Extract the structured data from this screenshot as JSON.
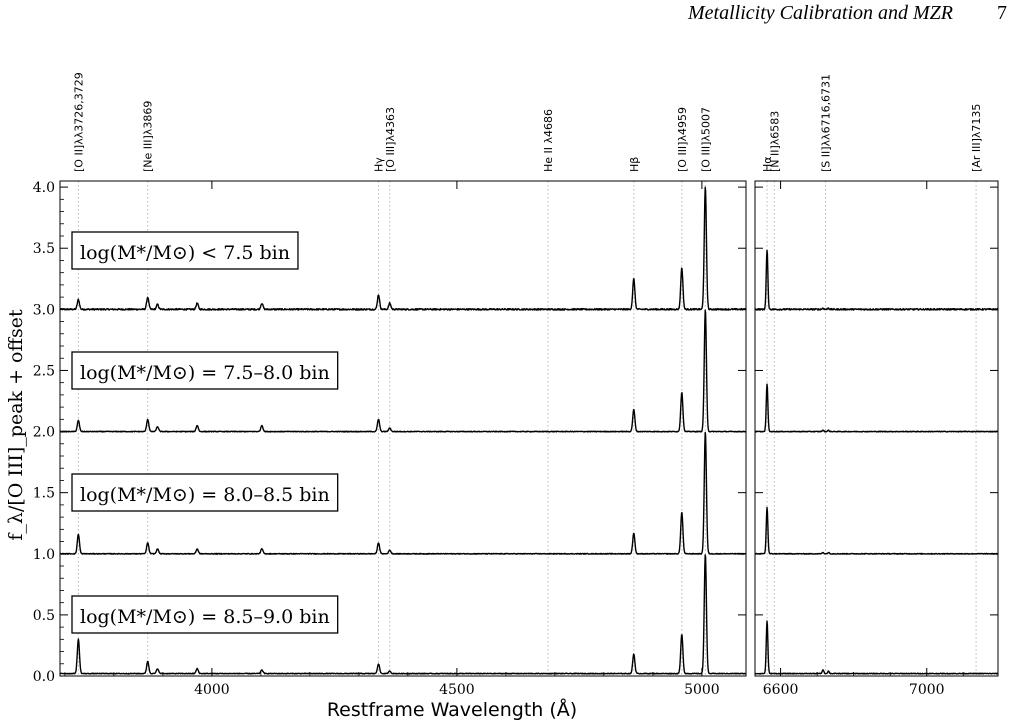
{
  "header": {
    "running_title": "Metallicity Calibration and MZR",
    "page_number": "7"
  },
  "chart_data": {
    "type": "line",
    "xlabel": "Restframe Wavelength (Å)",
    "ylabel": "f_λ/[O III]_peak + offset",
    "ylim": [
      0,
      4.05
    ],
    "yticks": [
      0.0,
      0.5,
      1.0,
      1.5,
      2.0,
      2.5,
      3.0,
      3.5,
      4.0
    ],
    "ytick_labels": [
      "0.0",
      "0.5",
      "1.0",
      "1.5",
      "2.0",
      "2.5",
      "3.0",
      "3.5",
      "4.0"
    ],
    "panels": [
      {
        "name": "blue",
        "xlim": [
          3690,
          5090
        ],
        "xticks": [
          4000,
          4500,
          5000
        ],
        "xtick_labels": [
          "4000",
          "4500",
          "5000"
        ]
      },
      {
        "name": "red",
        "xlim": [
          6530,
          7195
        ],
        "xticks": [
          6600,
          7000
        ],
        "xtick_labels": [
          "6600",
          "7000"
        ]
      }
    ],
    "line_markers": [
      {
        "label": "[O II]λλ3726,3729",
        "wavelength": 3727.5,
        "panel": 0
      },
      {
        "label": "[Ne III]λ3869",
        "wavelength": 3869,
        "panel": 0
      },
      {
        "label": "Hγ",
        "wavelength": 4340,
        "panel": 0
      },
      {
        "label": "[O III]λ4363",
        "wavelength": 4363,
        "panel": 0
      },
      {
        "label": "He II λ4686",
        "wavelength": 4686,
        "panel": 0
      },
      {
        "label": "Hβ",
        "wavelength": 4861,
        "panel": 0
      },
      {
        "label": "[O III]λ4959",
        "wavelength": 4959,
        "panel": 0
      },
      {
        "label": "[O III]λ5007",
        "wavelength": 5007,
        "panel": 0
      },
      {
        "label": "Hα",
        "wavelength": 6563,
        "panel": 1
      },
      {
        "label": "[N II]λ6583",
        "wavelength": 6583,
        "panel": 1
      },
      {
        "label": "[S II]λλ6716,6731",
        "wavelength": 6723,
        "panel": 1
      },
      {
        "label": "[Ar III]λ7135",
        "wavelength": 7135,
        "panel": 1
      }
    ],
    "line_width_A": 2.2,
    "series": [
      {
        "name": "log(M*/M⊙) < 7.5 bin",
        "offset": 3.0,
        "noise": 0.006,
        "lines": [
          {
            "w": 3727.5,
            "amp": 0.08
          },
          {
            "w": 3869,
            "amp": 0.1
          },
          {
            "w": 3889,
            "amp": 0.04
          },
          {
            "w": 3970,
            "amp": 0.05
          },
          {
            "w": 4102,
            "amp": 0.05
          },
          {
            "w": 4340,
            "amp": 0.12
          },
          {
            "w": 4363,
            "amp": 0.05
          },
          {
            "w": 4861,
            "amp": 0.25
          },
          {
            "w": 4959,
            "amp": 0.34
          },
          {
            "w": 5007,
            "amp": 1.0
          },
          {
            "w": 6563,
            "amp": 0.49
          },
          {
            "w": 6716,
            "amp": 0.01
          },
          {
            "w": 6731,
            "amp": 0.01
          }
        ]
      },
      {
        "name": "log(M*/M⊙) = 7.5–8.0 bin",
        "offset": 2.0,
        "noise": 0.003,
        "lines": [
          {
            "w": 3727.5,
            "amp": 0.09
          },
          {
            "w": 3869,
            "amp": 0.1
          },
          {
            "w": 3889,
            "amp": 0.04
          },
          {
            "w": 3970,
            "amp": 0.05
          },
          {
            "w": 4102,
            "amp": 0.05
          },
          {
            "w": 4340,
            "amp": 0.1
          },
          {
            "w": 4363,
            "amp": 0.03
          },
          {
            "w": 4861,
            "amp": 0.18
          },
          {
            "w": 4959,
            "amp": 0.32
          },
          {
            "w": 5007,
            "amp": 1.0
          },
          {
            "w": 6563,
            "amp": 0.39
          },
          {
            "w": 6716,
            "amp": 0.01
          },
          {
            "w": 6731,
            "amp": 0.01
          }
        ]
      },
      {
        "name": "log(M*/M⊙) = 8.0–8.5 bin",
        "offset": 1.0,
        "noise": 0.003,
        "lines": [
          {
            "w": 3727.5,
            "amp": 0.16
          },
          {
            "w": 3869,
            "amp": 0.09
          },
          {
            "w": 3889,
            "amp": 0.04
          },
          {
            "w": 3970,
            "amp": 0.04
          },
          {
            "w": 4102,
            "amp": 0.04
          },
          {
            "w": 4340,
            "amp": 0.09
          },
          {
            "w": 4363,
            "amp": 0.03
          },
          {
            "w": 4861,
            "amp": 0.17
          },
          {
            "w": 4959,
            "amp": 0.34
          },
          {
            "w": 5007,
            "amp": 1.0
          },
          {
            "w": 6563,
            "amp": 0.38
          },
          {
            "w": 6716,
            "amp": 0.01
          },
          {
            "w": 6731,
            "amp": 0.01
          }
        ]
      },
      {
        "name": "log(M*/M⊙) = 8.5–9.0 bin",
        "offset": 0.02,
        "noise": 0.003,
        "lines": [
          {
            "w": 3727.5,
            "amp": 0.28
          },
          {
            "w": 3869,
            "amp": 0.1
          },
          {
            "w": 3889,
            "amp": 0.04
          },
          {
            "w": 3970,
            "amp": 0.04
          },
          {
            "w": 4102,
            "amp": 0.03
          },
          {
            "w": 4340,
            "amp": 0.08
          },
          {
            "w": 4363,
            "amp": 0.02
          },
          {
            "w": 4861,
            "amp": 0.16
          },
          {
            "w": 4959,
            "amp": 0.32
          },
          {
            "w": 5007,
            "amp": 0.98
          },
          {
            "w": 6563,
            "amp": 0.43
          },
          {
            "w": 6716,
            "amp": 0.03
          },
          {
            "w": 6731,
            "amp": 0.02
          }
        ]
      }
    ]
  }
}
